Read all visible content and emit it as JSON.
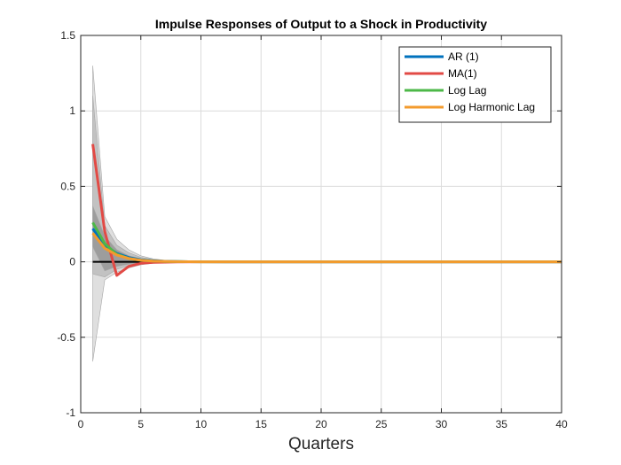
{
  "chart_data": {
    "type": "line",
    "title": "Impulse Responses of Output to a Shock in Productivity",
    "xlabel": "Quarters",
    "ylabel": "",
    "xlim": [
      0,
      40
    ],
    "ylim": [
      -1,
      1.5
    ],
    "xticks": [
      0,
      5,
      10,
      15,
      20,
      25,
      30,
      35,
      40
    ],
    "yticks": [
      -1,
      -0.5,
      0,
      0.5,
      1,
      1.5
    ],
    "xtick_labels": [
      "0",
      "5",
      "10",
      "15",
      "20",
      "25",
      "30",
      "35",
      "40"
    ],
    "ytick_labels": [
      "-1",
      "-0.5",
      "0",
      "0.5",
      "1",
      "1.5"
    ],
    "grid": true,
    "legend_position": "top-right",
    "zero_line": {
      "y": 0,
      "color": "#000000"
    },
    "series": [
      {
        "name": "AR (1)",
        "color": "#0072BD",
        "x": [
          1,
          2,
          3,
          4,
          5,
          6,
          7,
          8,
          9,
          10,
          12,
          15,
          20,
          30,
          40
        ],
        "y": [
          0.22,
          0.11,
          0.055,
          0.028,
          0.014,
          0.007,
          0.0035,
          0.0018,
          0.0009,
          0.0005,
          0.0001,
          0,
          0,
          0,
          0
        ]
      },
      {
        "name": "MA(1)",
        "color": "#E24A45",
        "x": [
          1,
          2,
          3,
          4,
          5,
          6,
          7,
          8,
          10,
          15,
          20,
          30,
          40
        ],
        "y": [
          0.78,
          0.2,
          -0.09,
          -0.03,
          -0.01,
          -0.004,
          -0.002,
          -0.001,
          0,
          0,
          0,
          0,
          0
        ]
      },
      {
        "name": "Log Lag",
        "color": "#4DB848",
        "x": [
          1,
          2,
          3,
          4,
          5,
          6,
          7,
          8,
          10,
          15,
          20,
          30,
          40
        ],
        "y": [
          0.26,
          0.12,
          0.05,
          0.022,
          0.01,
          0.005,
          0.002,
          0.001,
          0,
          0,
          0,
          0,
          0
        ]
      },
      {
        "name": "Log Harmonic Lag",
        "color": "#F39B2D",
        "x": [
          1,
          2,
          3,
          4,
          5,
          6,
          7,
          8,
          10,
          15,
          20,
          30,
          40
        ],
        "y": [
          0.19,
          0.09,
          0.045,
          0.022,
          0.011,
          0.005,
          0.0025,
          0.001,
          0,
          0,
          0,
          0,
          0
        ]
      }
    ],
    "bands": [
      {
        "color": "#d9d9d9",
        "x": [
          1,
          2,
          3,
          4,
          5,
          6,
          7,
          8,
          10,
          15,
          40
        ],
        "upper": [
          1.3,
          0.3,
          0.15,
          0.08,
          0.04,
          0.02,
          0.01,
          0.005,
          0.002,
          0,
          0
        ],
        "lower": [
          -0.66,
          -0.12,
          -0.07,
          -0.04,
          -0.02,
          -0.01,
          -0.005,
          -0.003,
          -0.001,
          0,
          0
        ]
      },
      {
        "color": "#bdbdbd",
        "x": [
          1,
          2,
          3,
          4,
          5,
          6,
          7,
          8,
          10,
          15,
          40
        ],
        "upper": [
          1.1,
          0.24,
          0.11,
          0.06,
          0.03,
          0.015,
          0.008,
          0.004,
          0.001,
          0,
          0
        ],
        "lower": [
          -0.08,
          -0.1,
          -0.05,
          -0.025,
          -0.012,
          -0.006,
          -0.003,
          -0.002,
          -0.001,
          0,
          0
        ]
      },
      {
        "color": "#969696",
        "x": [
          1,
          2,
          3,
          4,
          5,
          6,
          7,
          8,
          10,
          15,
          40
        ],
        "upper": [
          0.37,
          0.17,
          0.08,
          0.04,
          0.02,
          0.01,
          0.005,
          0.002,
          0.001,
          0,
          0
        ],
        "lower": [
          0.1,
          -0.06,
          -0.03,
          -0.015,
          -0.008,
          -0.004,
          -0.002,
          -0.001,
          0,
          0,
          0
        ]
      }
    ]
  }
}
